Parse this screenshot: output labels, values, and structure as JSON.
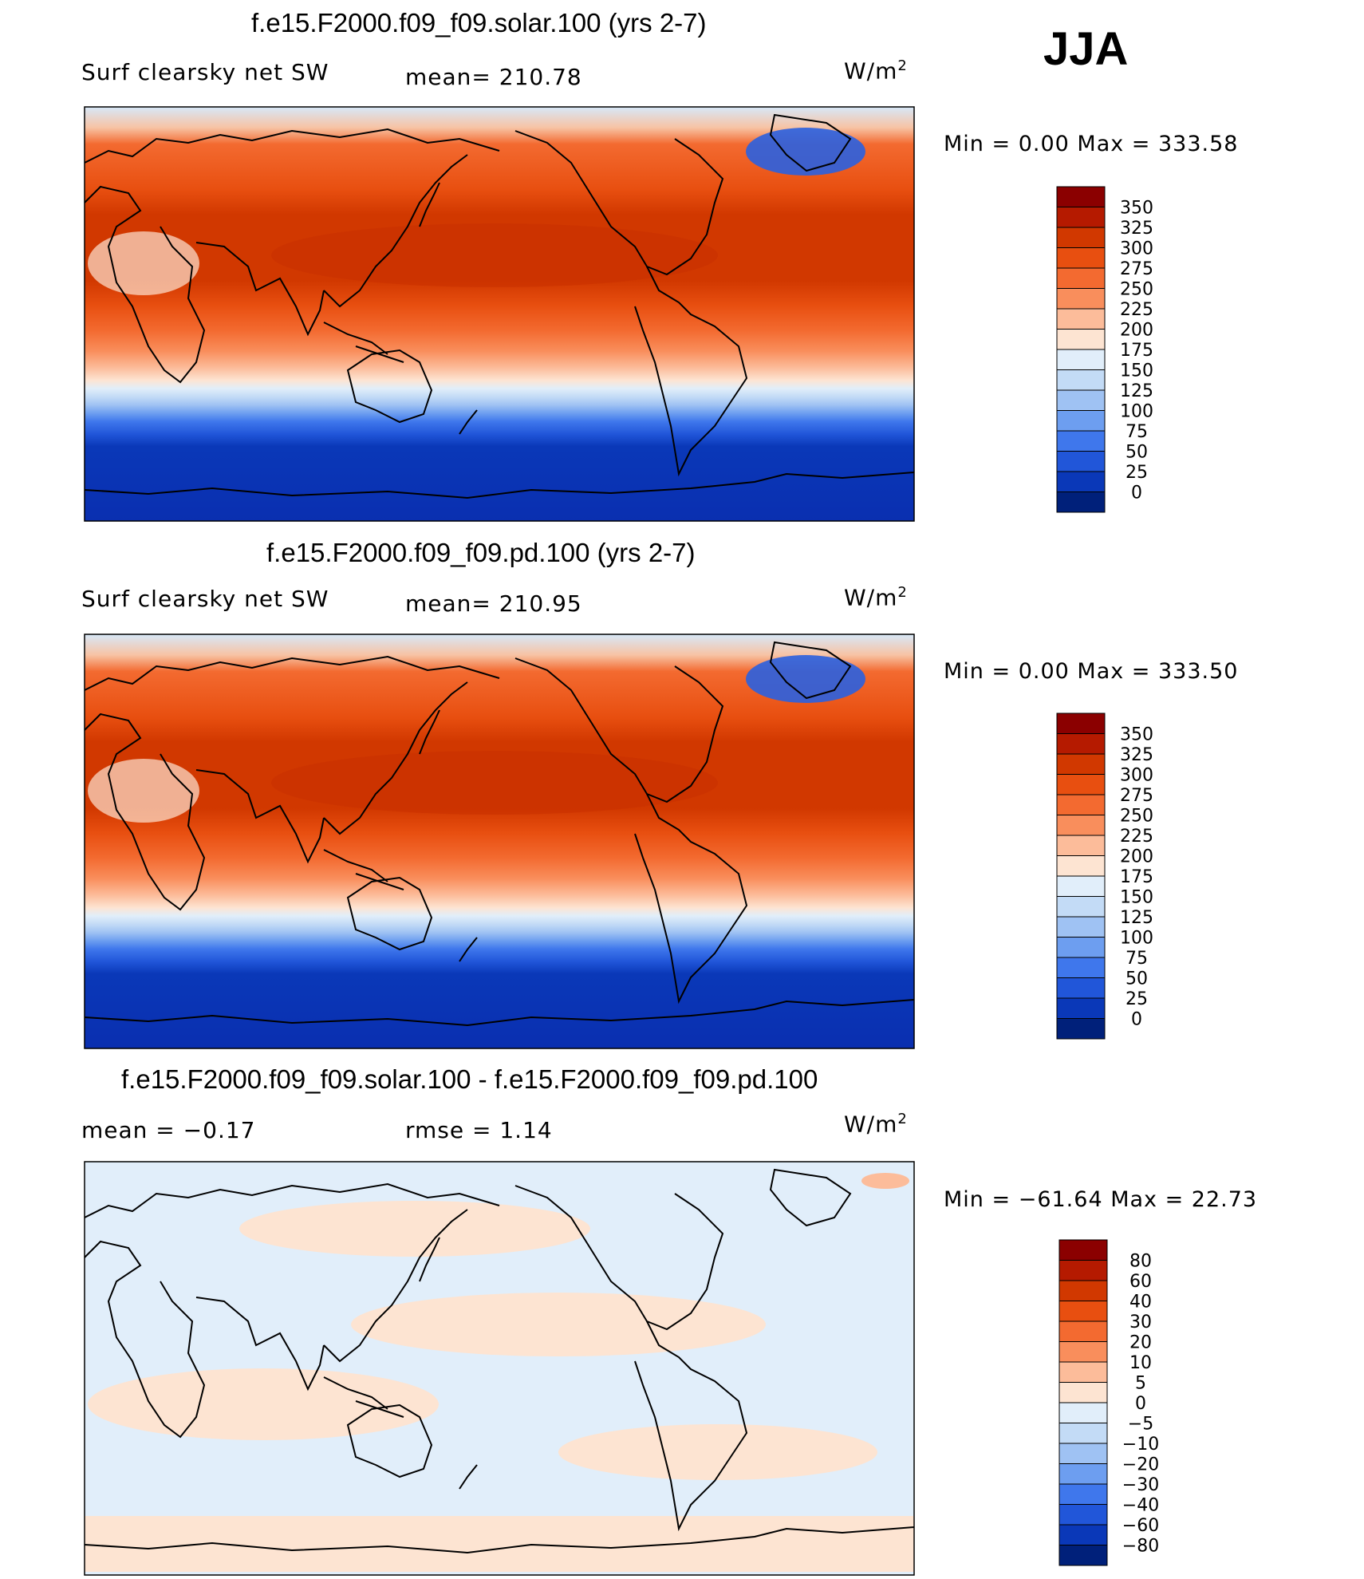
{
  "season": "JJA",
  "panels": [
    {
      "title": "f.e15.F2000.f09_f09.solar.100 (yrs 2-7)",
      "left_label": "Surf clearsky net SW",
      "center_label": "mean= 210.78",
      "units_base": "W/m",
      "units_exp": "2",
      "minmax": "Min =     0.00  Max  =  333.58",
      "kind": "abs"
    },
    {
      "title": "f.e15.F2000.f09_f09.pd.100 (yrs 2-7)",
      "left_label": "Surf clearsky net SW",
      "center_label": "mean= 210.95",
      "units_base": "W/m",
      "units_exp": "2",
      "minmax": "Min =     0.00  Max  =  333.50",
      "kind": "abs"
    },
    {
      "title": "f.e15.F2000.f09_f09.solar.100 - f.e15.F2000.f09_f09.pd.100",
      "left_label": "mean =    −0.17",
      "center_label": "rmse =     1.14",
      "units_base": "W/m",
      "units_exp": "2",
      "minmax": "Min =  −61.64  Max  =   22.73",
      "kind": "diff"
    }
  ],
  "colorbar_abs": {
    "labels": [
      "350",
      "325",
      "300",
      "275",
      "250",
      "225",
      "200",
      "175",
      "150",
      "125",
      "100",
      "75",
      "50",
      "25",
      "0"
    ],
    "colors": [
      "#8b0000",
      "#b51a00",
      "#d13800",
      "#e84f10",
      "#f36a30",
      "#f98e5c",
      "#fcbc9a",
      "#fde4d2",
      "#e1eefa",
      "#c3dbf6",
      "#9fc2f3",
      "#6d9ef0",
      "#3f77ec",
      "#2156d9",
      "#0a38b8",
      "#00207a"
    ]
  },
  "colorbar_diff": {
    "labels": [
      "80",
      "60",
      "40",
      "30",
      "20",
      "10",
      "5",
      "0",
      "−5",
      "−10",
      "−20",
      "−30",
      "−40",
      "−60",
      "−80"
    ],
    "colors": [
      "#8b0000",
      "#b51a00",
      "#d13800",
      "#e84f10",
      "#f36a30",
      "#f98e5c",
      "#fcbc9a",
      "#fde4d2",
      "#e1eefa",
      "#c3dbf6",
      "#9fc2f3",
      "#6d9ef0",
      "#3f77ec",
      "#2156d9",
      "#0a38b8",
      "#00207a"
    ]
  }
}
